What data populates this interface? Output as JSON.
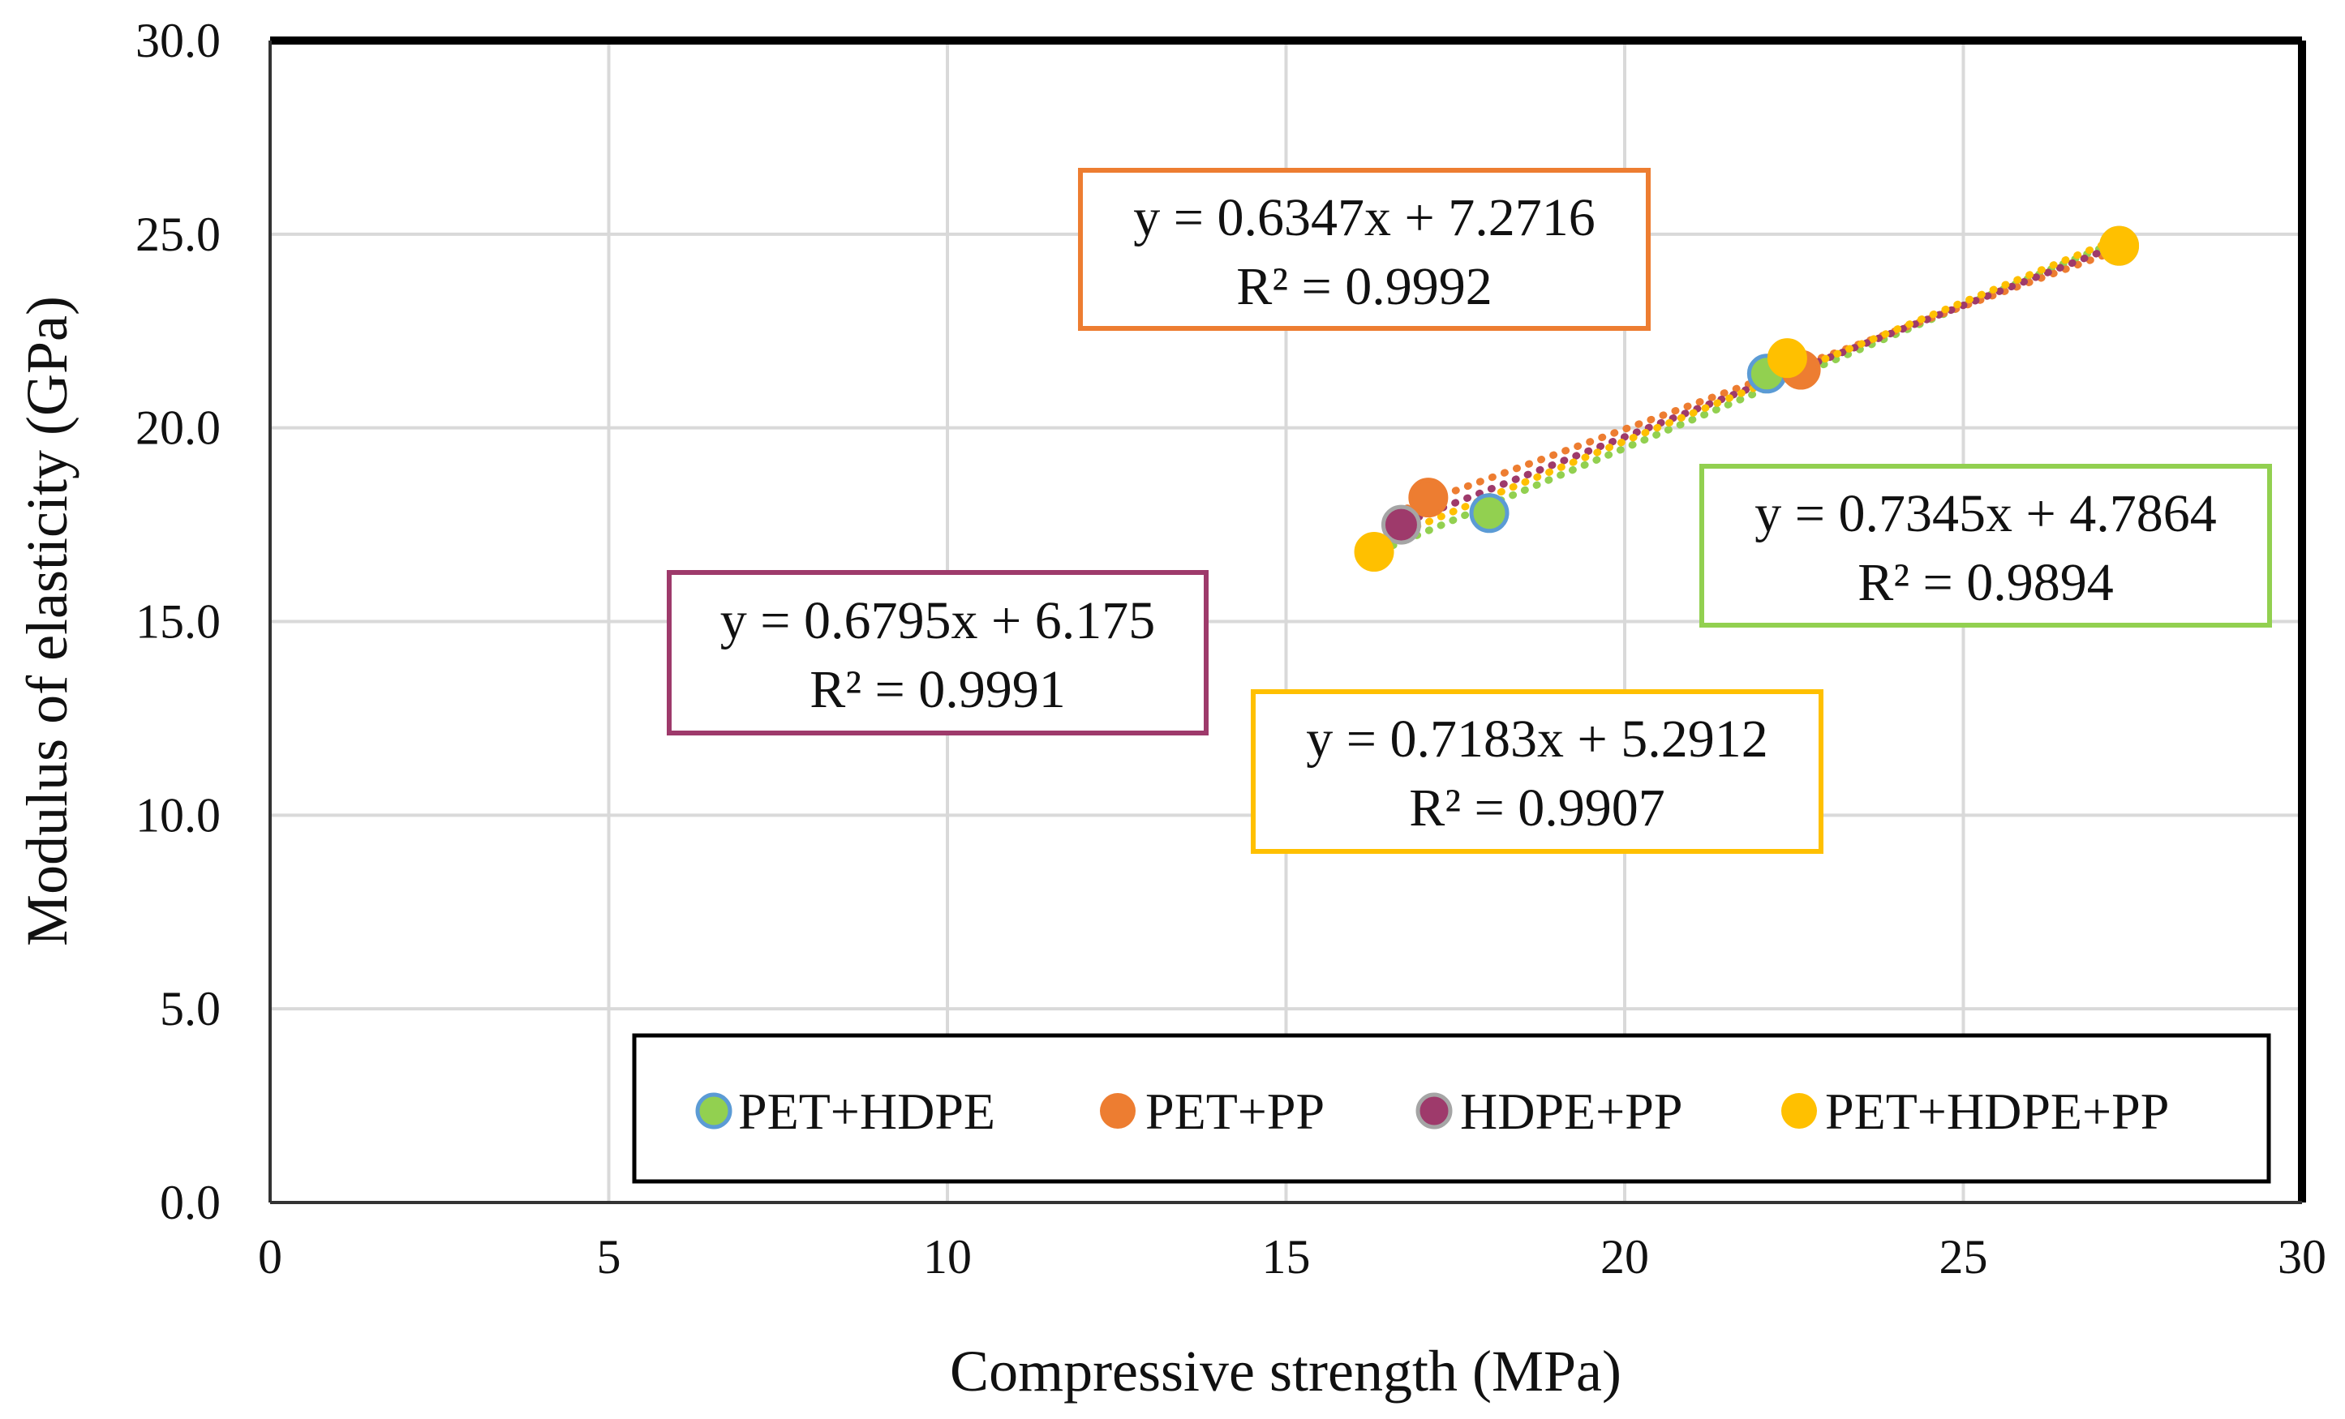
{
  "chart_data": {
    "type": "scatter",
    "title": "",
    "xlabel": "Compressive strength (MPa)",
    "ylabel": "Modulus of elasticity (GPa)",
    "xlim": [
      0,
      30
    ],
    "ylim": [
      0,
      30
    ],
    "x_ticks": [
      "0",
      "5",
      "10",
      "15",
      "20",
      "25",
      "30"
    ],
    "y_ticks": [
      "0.0",
      "5.0",
      "10.0",
      "15.0",
      "20.0",
      "25.0",
      "30.0"
    ],
    "grid": true,
    "legend_position": "bottom-right",
    "series": [
      {
        "name": "PET+HDPE",
        "color": "#92D050",
        "edge_color": "#5B9BD5",
        "points": [
          [
            18.0,
            17.8
          ],
          [
            22.1,
            21.4
          ]
        ],
        "trendline": {
          "slope": 0.7345,
          "intercept": 4.7864,
          "x_range": [
            16.4,
            27.2
          ]
        },
        "equation": "y = 0.7345x + 4.7864",
        "r2": "R² = 0.9894"
      },
      {
        "name": "PET+PP",
        "color": "#ED7D31",
        "edge_color": "#ED7D31",
        "points": [
          [
            17.1,
            18.2
          ],
          [
            22.6,
            21.5
          ]
        ],
        "trendline": {
          "slope": 0.6347,
          "intercept": 7.2716,
          "x_range": [
            16.6,
            27.2
          ]
        },
        "equation": "y = 0.6347x + 7.2716",
        "r2": "R² = 0.9992"
      },
      {
        "name": "HDPE+PP",
        "color": "#9E3A6B",
        "edge_color": "#A5A5A5",
        "points": [
          [
            16.7,
            17.5
          ],
          [
            27.3,
            24.7
          ]
        ],
        "trendline": {
          "slope": 0.6795,
          "intercept": 6.175,
          "x_range": [
            16.6,
            27.2
          ]
        },
        "equation": "y = 0.6795x + 6.175",
        "r2": "R² = 0.9991"
      },
      {
        "name": "PET+HDPE+PP",
        "color": "#FFC000",
        "edge_color": "#FFC000",
        "points": [
          [
            16.3,
            16.8
          ],
          [
            22.4,
            21.8
          ],
          [
            27.3,
            24.7
          ]
        ],
        "trendline": {
          "slope": 0.7183,
          "intercept": 5.2912,
          "x_range": [
            16.4,
            27.2
          ]
        },
        "equation": "y = 0.7183x + 5.2912",
        "r2": "R² = 0.9907"
      }
    ]
  }
}
